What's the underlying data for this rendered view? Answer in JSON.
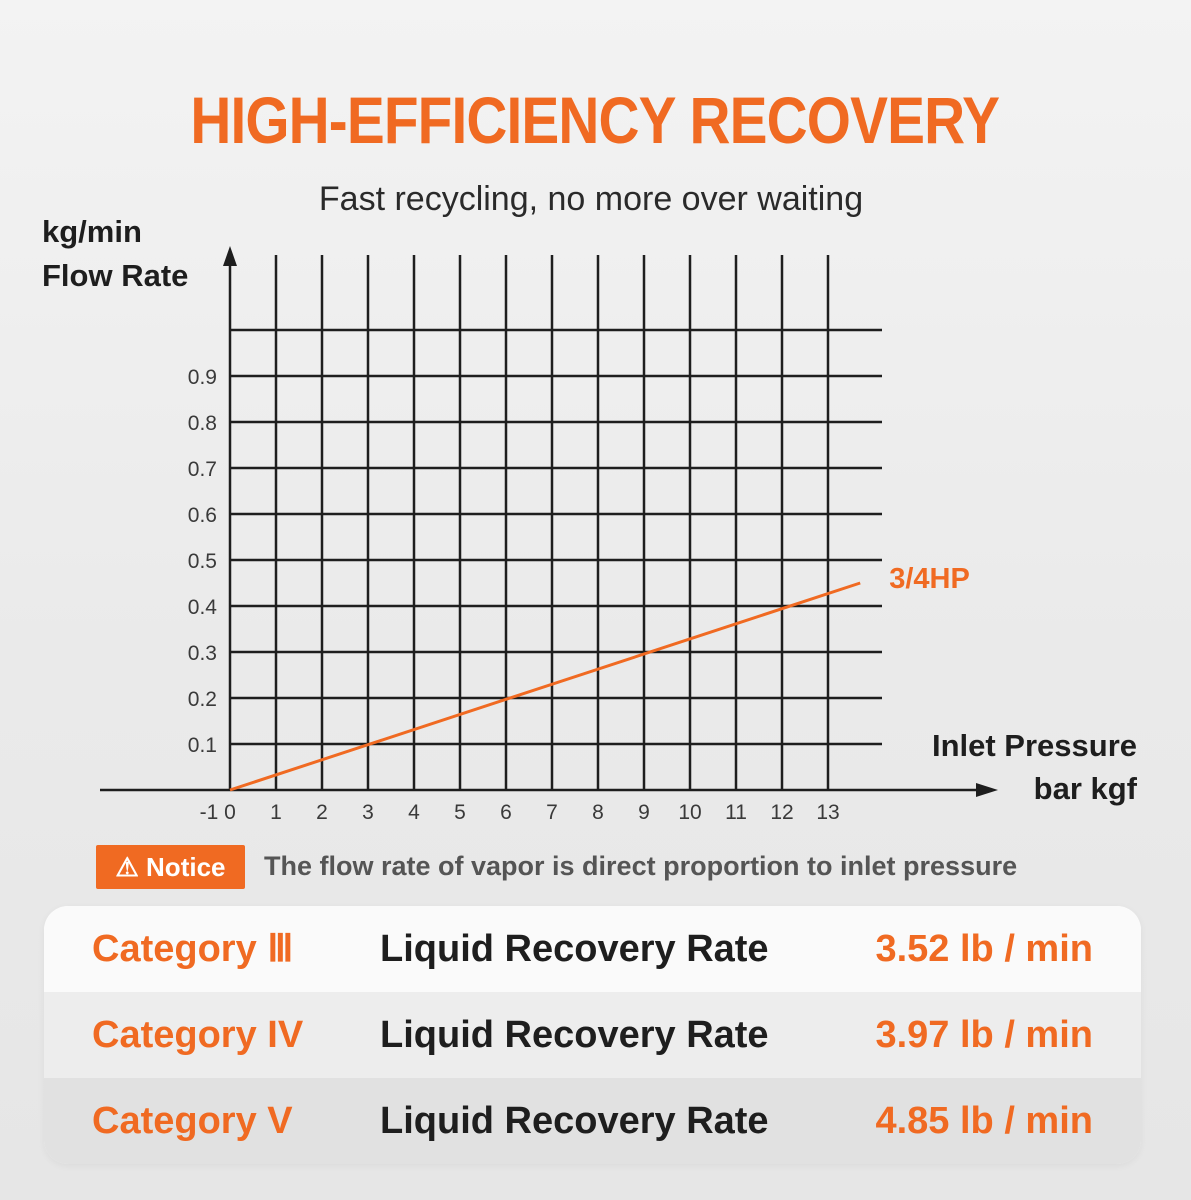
{
  "header": {
    "title": "HIGH-EFFICIENCY RECOVERY",
    "subtitle": "Fast recycling, no more over waiting"
  },
  "colors": {
    "accent": "#f06a22",
    "grid": "#1e1e1e",
    "background": "#ececec"
  },
  "chart_data": {
    "type": "line",
    "ylabel_unit": "kg/min",
    "ylabel": "Flow Rate",
    "xlabel": "Inlet Pressure",
    "xlabel_unit": "bar kgf",
    "x_ticks": [
      "-1",
      "0",
      "1",
      "2",
      "3",
      "4",
      "5",
      "6",
      "7",
      "8",
      "9",
      "10",
      "11",
      "12",
      "13"
    ],
    "y_ticks": [
      "0.1",
      "0.2",
      "0.3",
      "0.4",
      "0.5",
      "0.6",
      "0.7",
      "0.8",
      "0.9"
    ],
    "xlim": [
      -1,
      14.5
    ],
    "ylim": [
      0,
      1.1
    ],
    "grid": true,
    "series": [
      {
        "name": "3/4HP",
        "color": "#f06a22",
        "x": [
          0,
          13.7
        ],
        "y": [
          0,
          0.45
        ]
      }
    ]
  },
  "notice": {
    "icon": "warning-icon",
    "badge_label": "⚠ Notice",
    "text": "The flow rate of vapor is direct proportion to inlet pressure"
  },
  "table": {
    "rows": [
      {
        "category": "Category Ⅲ",
        "label": "Liquid Recovery Rate",
        "value": "3.52 lb / min"
      },
      {
        "category": "Category IV",
        "label": "Liquid Recovery Rate",
        "value": "3.97 lb / min"
      },
      {
        "category": "Category V",
        "label": "Liquid Recovery Rate",
        "value": "4.85 lb / min"
      }
    ]
  }
}
